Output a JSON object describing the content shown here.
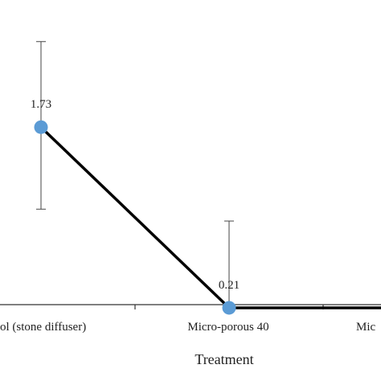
{
  "chart_data": {
    "type": "line",
    "categories": [
      "Control (stone diffuser)",
      "Micro-porous 40",
      "Micro-porous"
    ],
    "visible_category_labels": [
      "ol (stone diffuser)",
      "Micro-porous 40",
      "Mic"
    ],
    "series": [
      {
        "values": [
          1.73,
          0.21,
          0.21
        ],
        "error_low": [
          1.04,
          null,
          null
        ],
        "error_high": [
          2.45,
          0.94,
          null
        ]
      }
    ],
    "data_labels": [
      "1.73",
      "0.21"
    ],
    "xlabel": "Treatment",
    "ylabel": "",
    "title": "",
    "ylim": [
      0,
      2.8
    ],
    "grid": false,
    "legend": "none",
    "colors": {
      "line": "#000000",
      "marker": "#5b9bd5",
      "axis": "#333333",
      "error_bar": "#444444",
      "text": "#222222"
    }
  }
}
